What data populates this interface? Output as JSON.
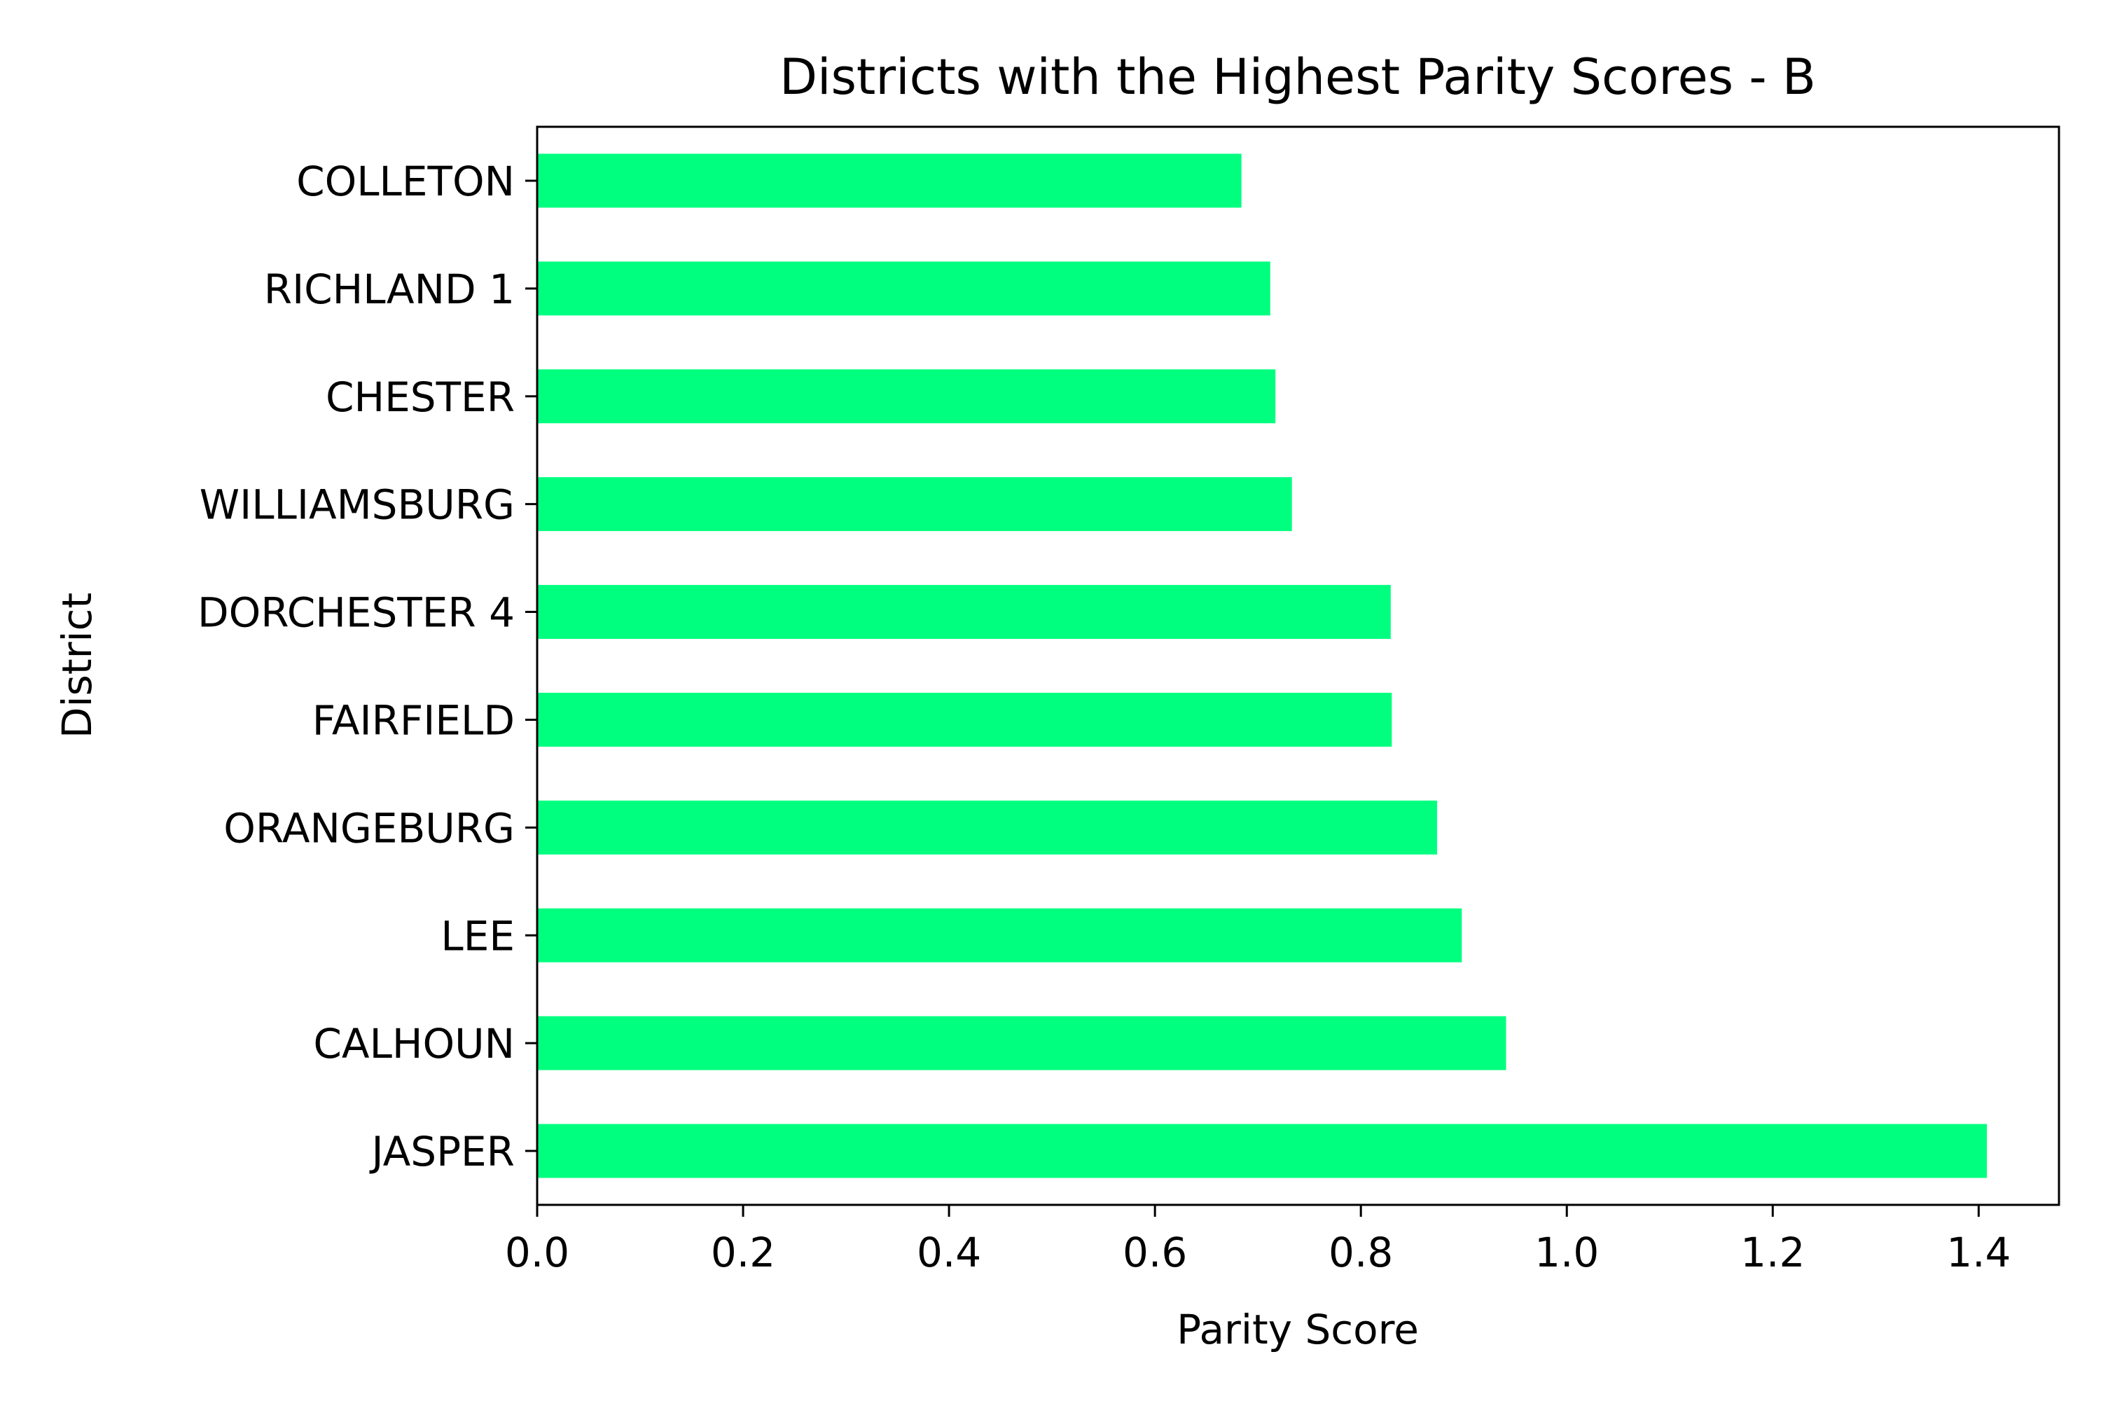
{
  "chart_data": {
    "type": "bar",
    "orientation": "horizontal",
    "title": "Districts with the Highest Parity Scores - B",
    "xlabel": "Parity Score",
    "ylabel": "District",
    "categories": [
      "JASPER",
      "CALHOUN",
      "LEE",
      "ORANGEBURG",
      "FAIRFIELD",
      "DORCHESTER 4",
      "WILLIAMSBURG",
      "CHESTER",
      "RICHLAND 1",
      "COLLETON"
    ],
    "values": [
      1.408,
      0.941,
      0.898,
      0.874,
      0.83,
      0.829,
      0.733,
      0.717,
      0.712,
      0.684
    ],
    "xlim": [
      0,
      1.478
    ],
    "xticks": [
      "0.0",
      "0.2",
      "0.4",
      "0.6",
      "0.8",
      "1.0",
      "1.2",
      "1.4"
    ],
    "bar_color": "#00ff7f",
    "grid": false,
    "legend": "none"
  }
}
